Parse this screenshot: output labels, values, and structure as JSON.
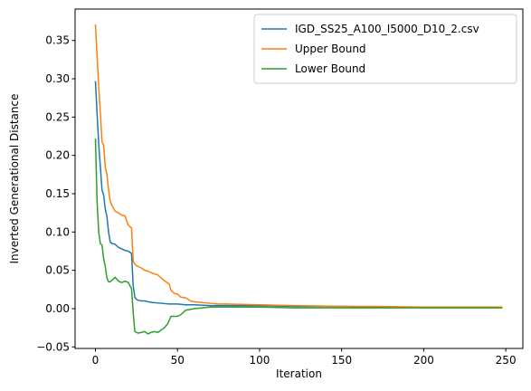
{
  "chart_data": {
    "type": "line",
    "title": "",
    "xlabel": "Iteration",
    "ylabel": "Inverted Generational Distance",
    "xlim": [
      -12.4,
      260.4
    ],
    "ylim": [
      -0.052,
      0.391
    ],
    "xticks": [
      0,
      50,
      100,
      150,
      200,
      250
    ],
    "yticks": [
      -0.05,
      0.0,
      0.05,
      0.1,
      0.15,
      0.2,
      0.25,
      0.3,
      0.35
    ],
    "ytick_labels": [
      "−0.05",
      "0.00",
      "0.05",
      "0.10",
      "0.15",
      "0.20",
      "0.25",
      "0.30",
      "0.35"
    ],
    "grid": false,
    "legend_position": "top-right",
    "series": [
      {
        "name": "IGD_SS25_A100_I5000_D10_2.csv",
        "color": "#1f77b4",
        "x": [
          0,
          1,
          2,
          3,
          4,
          5,
          6,
          7,
          8,
          9,
          10,
          12,
          14,
          16,
          18,
          20,
          22,
          23,
          24,
          25,
          26,
          28,
          30,
          32,
          35,
          40,
          45,
          50,
          55,
          60,
          70,
          80,
          100,
          120,
          150,
          170,
          200,
          230,
          248
        ],
        "values": [
          0.297,
          0.255,
          0.215,
          0.185,
          0.155,
          0.148,
          0.13,
          0.12,
          0.1,
          0.087,
          0.085,
          0.084,
          0.08,
          0.078,
          0.076,
          0.075,
          0.072,
          0.03,
          0.015,
          0.012,
          0.011,
          0.01,
          0.01,
          0.009,
          0.008,
          0.007,
          0.006,
          0.006,
          0.005,
          0.005,
          0.004,
          0.004,
          0.004,
          0.003,
          0.003,
          0.002,
          0.002,
          0.002,
          0.002
        ]
      },
      {
        "name": "Upper Bound",
        "color": "#ff7f0e",
        "x": [
          0,
          1,
          2,
          3,
          4,
          5,
          6,
          7,
          8,
          9,
          10,
          12,
          14,
          16,
          18,
          20,
          22,
          23,
          24,
          25,
          28,
          30,
          32,
          35,
          38,
          40,
          43,
          45,
          46,
          48,
          50,
          52,
          55,
          58,
          60,
          65,
          70,
          75,
          80,
          100,
          120,
          150,
          170,
          200,
          230,
          248
        ],
        "values": [
          0.371,
          0.33,
          0.29,
          0.255,
          0.218,
          0.213,
          0.185,
          0.175,
          0.155,
          0.14,
          0.135,
          0.127,
          0.125,
          0.122,
          0.121,
          0.109,
          0.105,
          0.062,
          0.058,
          0.056,
          0.053,
          0.05,
          0.049,
          0.046,
          0.044,
          0.04,
          0.035,
          0.032,
          0.024,
          0.02,
          0.019,
          0.015,
          0.014,
          0.01,
          0.009,
          0.008,
          0.007,
          0.006,
          0.006,
          0.005,
          0.004,
          0.003,
          0.003,
          0.002,
          0.002,
          0.002
        ]
      },
      {
        "name": "Lower Bound",
        "color": "#2ca02c",
        "x": [
          0,
          1,
          2,
          3,
          4,
          5,
          6,
          7,
          8,
          9,
          10,
          12,
          14,
          16,
          18,
          20,
          22,
          23,
          24,
          26,
          28,
          30,
          32,
          34,
          36,
          38,
          40,
          42,
          44,
          46,
          48,
          50,
          52,
          55,
          58,
          60,
          65,
          70,
          80,
          100,
          120,
          150,
          170,
          200,
          230,
          248
        ],
        "values": [
          0.222,
          0.14,
          0.1,
          0.085,
          0.083,
          0.065,
          0.055,
          0.04,
          0.035,
          0.035,
          0.037,
          0.041,
          0.036,
          0.034,
          0.036,
          0.034,
          0.026,
          -0.005,
          -0.03,
          -0.032,
          -0.031,
          -0.03,
          -0.033,
          -0.031,
          -0.03,
          -0.031,
          -0.028,
          -0.025,
          -0.02,
          -0.01,
          -0.01,
          -0.01,
          -0.008,
          -0.002,
          -0.001,
          0.0,
          0.001,
          0.002,
          0.002,
          0.002,
          0.001,
          0.001,
          0.001,
          0.001,
          0.001,
          0.001
        ]
      }
    ]
  }
}
